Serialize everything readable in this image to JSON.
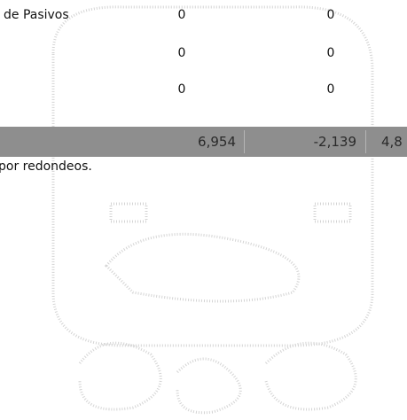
{
  "table": {
    "rows": [
      {
        "label": "de Pasivos",
        "cells": [
          "0",
          "0"
        ]
      },
      {
        "cells": [
          "0",
          "0"
        ]
      },
      {
        "cells": [
          "0",
          "0"
        ]
      }
    ],
    "total": [
      "6,954",
      "-2,139",
      "4,8"
    ]
  },
  "footnote": "por redondeos."
}
